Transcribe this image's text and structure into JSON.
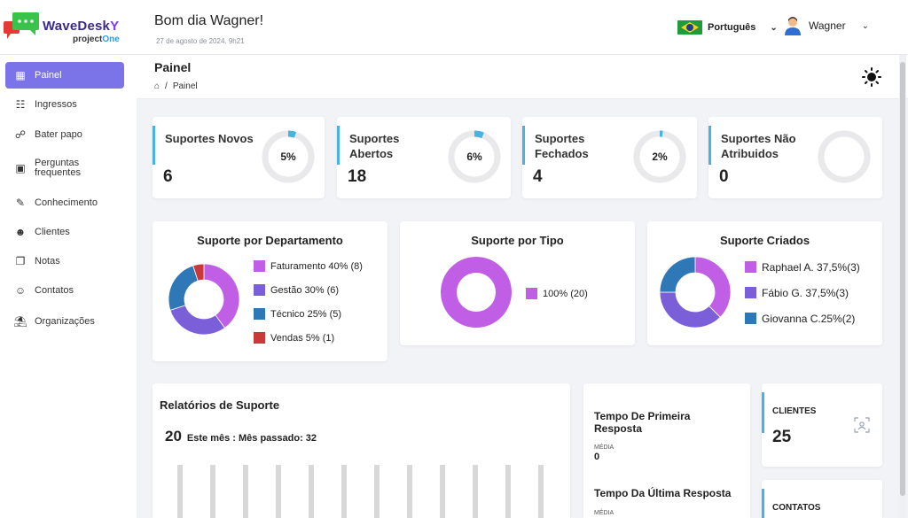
{
  "header": {
    "brand_main": "WaveDesk",
    "brand_accent": "Y",
    "brand_sub": "project",
    "brand_sub_accent": "One",
    "greeting": "Bom dia Wagner!",
    "date": "27 de agosto de 2024, 9h21",
    "language": "Português",
    "user_name": "Wagner"
  },
  "sidebar": {
    "items": [
      {
        "label": "Painel",
        "icon": "dashboard-icon",
        "active": true
      },
      {
        "label": "Ingressos",
        "icon": "ticket-icon"
      },
      {
        "label": "Bater papo",
        "icon": "chat-icon"
      },
      {
        "label": "Perguntas frequentes",
        "icon": "faq-icon"
      },
      {
        "label": "Conhecimento",
        "icon": "knowledge-icon"
      },
      {
        "label": "Clientes",
        "icon": "clients-icon"
      },
      {
        "label": "Notas",
        "icon": "notes-icon"
      },
      {
        "label": "Contatos",
        "icon": "contacts-icon"
      },
      {
        "label": "Organizações",
        "icon": "organization-icon"
      }
    ]
  },
  "page": {
    "title": "Painel",
    "breadcrumb": "Painel"
  },
  "stats": [
    {
      "label": "Suportes Novos",
      "value": "6",
      "percent": "5%",
      "fraction": 0.05
    },
    {
      "label": "Suportes Abertos",
      "value": "18",
      "percent": "6%",
      "fraction": 0.06
    },
    {
      "label": "Suportes Fechados",
      "value": "4",
      "percent": "2%",
      "fraction": 0.02
    },
    {
      "label": "Suportes Não Atribuidos",
      "value": "0",
      "percent": "",
      "fraction": 0
    }
  ],
  "charts": {
    "departamento": {
      "title": "Suporte por Departamento",
      "legend": [
        "Faturamento 40% (8)",
        "Gestão 30% (6)",
        "Técnico 25% (5)",
        "Vendas 5% (1)"
      ]
    },
    "tipo": {
      "title": "Suporte por Tipo",
      "legend": [
        "100% (20)"
      ]
    },
    "criados": {
      "title": "Suporte Criados",
      "legend": [
        "Raphael A. 37,5%(3)",
        "Fábio G. 37,5%(3)",
        "Giovanna C.25%(2)"
      ]
    }
  },
  "chart_data": [
    {
      "type": "pie",
      "title": "Suporte por Departamento",
      "categories": [
        "Faturamento",
        "Gestão",
        "Técnico",
        "Vendas"
      ],
      "values": [
        8,
        6,
        5,
        1
      ],
      "colors": [
        "#c05ee6",
        "#7b5fd9",
        "#2f78b7",
        "#c83a3a"
      ]
    },
    {
      "type": "pie",
      "title": "Suporte por Tipo",
      "categories": [
        ""
      ],
      "values": [
        20
      ],
      "colors": [
        "#c05ee6"
      ]
    },
    {
      "type": "pie",
      "title": "Suporte Criados",
      "categories": [
        "Raphael A.",
        "Fábio G.",
        "Giovanna C."
      ],
      "values": [
        3,
        3,
        2
      ],
      "colors": [
        "#c05ee6",
        "#7b5fd9",
        "#2f78b7"
      ]
    }
  ],
  "reports": {
    "title": "Relatórios de Suporte",
    "count": "20",
    "text": "Este mês : Mês passado: 32"
  },
  "response_times": [
    {
      "title": "Tempo De Primeira Resposta",
      "sub": "MÉDIA",
      "value": "0"
    },
    {
      "title": "Tempo Da Última Resposta",
      "sub": "MÉDIA",
      "value": ""
    }
  ],
  "mini_cards": [
    {
      "label": "CLIENTES",
      "value": "25"
    },
    {
      "label": "CONTATOS",
      "value": ""
    }
  ]
}
